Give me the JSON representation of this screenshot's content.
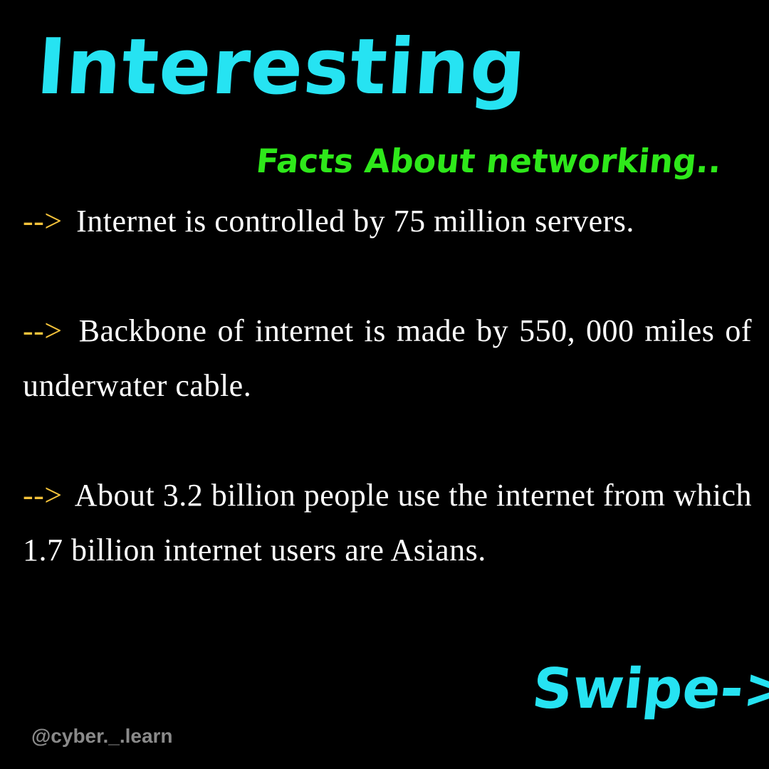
{
  "title": "Interesting",
  "subtitle": "Facts About networking..",
  "facts": [
    {
      "arrow": "-->",
      "text": "Internet is controlled by 75 million servers."
    },
    {
      "arrow": "-->",
      "text": "Backbone of internet is made by 550, 000 miles of underwater cable."
    },
    {
      "arrow": "-->",
      "text": "About 3.2 billion people use the internet from which 1.7 billion internet users are Asians."
    }
  ],
  "swipe": "Swipe->",
  "handle": "@cyber._.learn",
  "colors": {
    "background": "#000000",
    "title": "#26e3f2",
    "subtitle": "#2ee81a",
    "arrow": "#f5c33b",
    "body_text": "#ffffff",
    "handle": "#8a8a8a"
  }
}
